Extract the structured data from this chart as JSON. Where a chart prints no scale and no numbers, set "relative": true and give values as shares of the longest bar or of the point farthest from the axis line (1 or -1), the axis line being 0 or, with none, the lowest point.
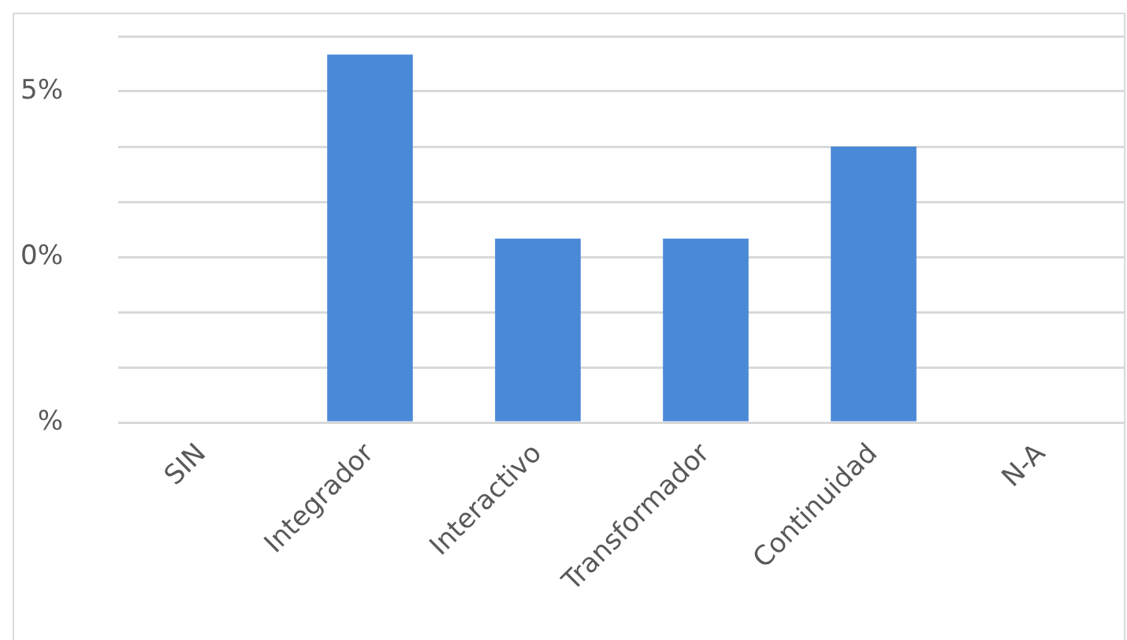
{
  "chart_data": {
    "type": "bar",
    "categories": [
      "SIN",
      "Integrador",
      "Interactivo",
      "Transformador",
      "Continuidad",
      "N-A"
    ],
    "values": [
      0,
      1,
      0.5,
      0.5,
      0.75,
      0
    ],
    "relative": true,
    "color": "#4a89d6",
    "grid": "y",
    "annotations": [
      "5%",
      "0%",
      "%"
    ]
  }
}
